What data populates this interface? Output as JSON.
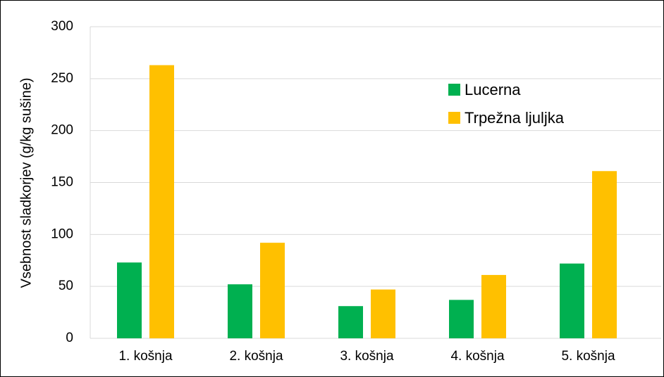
{
  "chart_data": {
    "type": "bar",
    "y_label": "Vsebnost sladkorjev (g/kg sušine)",
    "categories": [
      "1. košnja",
      "2. košnja",
      "3. košnja",
      "4. košnja",
      "5. košnja"
    ],
    "series": [
      {
        "name": "Lucerna",
        "color": "#00b050",
        "values": [
          73,
          52,
          31,
          37,
          72
        ]
      },
      {
        "name": "Trpežna ljuljka",
        "color": "#ffc000",
        "values": [
          263,
          92,
          47,
          61,
          161
        ]
      }
    ],
    "ylim": [
      0,
      300
    ],
    "yticks": [
      0,
      50,
      100,
      150,
      200,
      250,
      300
    ],
    "grid": true,
    "legend": "upper right"
  }
}
